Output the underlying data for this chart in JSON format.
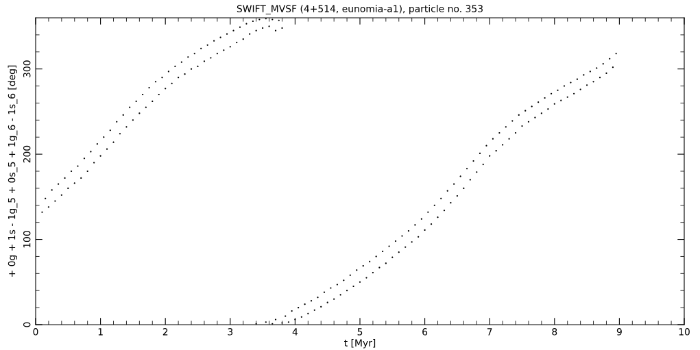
{
  "chart_data": {
    "type": "scatter",
    "title": "SWIFT_MVSF (4+514, eunomia-a1), particle no. 353",
    "xlabel": "t [Myr]",
    "ylabel": "+ 0g + 1s - 1g_5 + 0s_5 + 1g_6 - 1s_6 [deg]",
    "xlim": [
      0,
      10
    ],
    "ylim": [
      0,
      360
    ],
    "grid": false,
    "legend": false,
    "xticks": [
      0,
      {
        "value": 0.2,
        "label": null
      },
      {
        "value": 0.4,
        "label": null
      },
      {
        "value": 0.6,
        "label": null
      },
      {
        "value": 0.8,
        "label": null
      },
      1,
      {
        "value": 1.2,
        "label": null
      },
      {
        "value": 1.4,
        "label": null
      },
      {
        "value": 1.6,
        "label": null
      },
      {
        "value": 1.8,
        "label": null
      },
      2,
      {
        "value": 2.2,
        "label": null
      },
      {
        "value": 2.4,
        "label": null
      },
      {
        "value": 2.6,
        "label": null
      },
      {
        "value": 2.8,
        "label": null
      },
      3,
      {
        "value": 3.2,
        "label": null
      },
      {
        "value": 3.4,
        "label": null
      },
      {
        "value": 3.6,
        "label": null
      },
      {
        "value": 3.8,
        "label": null
      },
      4,
      {
        "value": 4.2,
        "label": null
      },
      {
        "value": 4.4,
        "label": null
      },
      {
        "value": 4.6,
        "label": null
      },
      {
        "value": 4.8,
        "label": null
      },
      5,
      {
        "value": 5.2,
        "label": null
      },
      {
        "value": 5.4,
        "label": null
      },
      {
        "value": 5.6,
        "label": null
      },
      {
        "value": 5.8,
        "label": null
      },
      6,
      {
        "value": 6.2,
        "label": null
      },
      {
        "value": 6.4,
        "label": null
      },
      {
        "value": 6.6,
        "label": null
      },
      {
        "value": 6.8,
        "label": null
      },
      7,
      {
        "value": 7.2,
        "label": null
      },
      {
        "value": 7.4,
        "label": null
      },
      {
        "value": 7.6,
        "label": null
      },
      {
        "value": 7.8,
        "label": null
      },
      8,
      {
        "value": 8.2,
        "label": null
      },
      {
        "value": 8.4,
        "label": null
      },
      {
        "value": 8.6,
        "label": null
      },
      {
        "value": 8.8,
        "label": null
      },
      9,
      {
        "value": 9.2,
        "label": null
      },
      {
        "value": 9.4,
        "label": null
      },
      {
        "value": 9.6,
        "label": null
      },
      {
        "value": 9.8,
        "label": null
      },
      10
    ],
    "yticks": [
      0,
      {
        "value": 20,
        "label": null
      },
      {
        "value": 40,
        "label": null
      },
      {
        "value": 60,
        "label": null
      },
      {
        "value": 80,
        "label": null
      },
      100,
      {
        "value": 120,
        "label": null
      },
      {
        "value": 140,
        "label": null
      },
      {
        "value": 160,
        "label": null
      },
      {
        "value": 180,
        "label": null
      },
      200,
      {
        "value": 220,
        "label": null
      },
      {
        "value": 240,
        "label": null
      },
      {
        "value": 260,
        "label": null
      },
      {
        "value": 280,
        "label": null
      },
      300,
      {
        "value": 320,
        "label": null
      },
      {
        "value": 340,
        "label": null
      }
    ],
    "series": [
      {
        "color": "#000000",
        "x": [
          0.1,
          0.15,
          0.2,
          0.25,
          0.3,
          0.35,
          0.4,
          0.45,
          0.5,
          0.55,
          0.6,
          0.65,
          0.7,
          0.75,
          0.8,
          0.85,
          0.9,
          0.95,
          1.0,
          1.05,
          1.1,
          1.15,
          1.2,
          1.25,
          1.3,
          1.35,
          1.4,
          1.45,
          1.5,
          1.55,
          1.6,
          1.65,
          1.7,
          1.75,
          1.8,
          1.85,
          1.9,
          1.95,
          2.0,
          2.05,
          2.1,
          2.15,
          2.2,
          2.25,
          2.3,
          2.35,
          2.4,
          2.45,
          2.5,
          2.55,
          2.6,
          2.65,
          2.7,
          2.75,
          2.8,
          2.85,
          2.9,
          2.95,
          3.0,
          3.05,
          3.1,
          3.15,
          3.2,
          3.25,
          3.3,
          3.35,
          3.4,
          3.45,
          3.5,
          3.55,
          3.6,
          3.65,
          3.7,
          3.75,
          3.8
        ],
        "values": [
          132,
          148,
          138,
          158,
          145,
          165,
          152,
          172,
          160,
          180,
          166,
          186,
          172,
          195,
          180,
          203,
          190,
          212,
          198,
          220,
          206,
          228,
          214,
          238,
          224,
          246,
          232,
          255,
          240,
          262,
          248,
          270,
          255,
          278,
          262,
          285,
          270,
          290,
          277,
          297,
          283,
          303,
          290,
          308,
          294,
          314,
          300,
          318,
          303,
          324,
          309,
          328,
          313,
          333,
          318,
          337,
          322,
          341,
          326,
          345,
          331,
          349,
          335,
          353,
          341,
          356,
          345,
          358,
          348,
          359,
          350,
          358,
          345,
          357,
          348
        ]
      },
      {
        "color": "#000000",
        "x": [
          3.4,
          3.55,
          3.65,
          3.7,
          3.8,
          3.85,
          3.9,
          3.95,
          4.0,
          4.05,
          4.1,
          4.15,
          4.2,
          4.25,
          4.3,
          4.35,
          4.4,
          4.45,
          4.5,
          4.55,
          4.6,
          4.65,
          4.7,
          4.75,
          4.8,
          4.85,
          4.9,
          4.95,
          5.0,
          5.05,
          5.1,
          5.15,
          5.2,
          5.25,
          5.3,
          5.35,
          5.4,
          5.45,
          5.5,
          5.55,
          5.6,
          5.65,
          5.7,
          5.75,
          5.8,
          5.85,
          5.9,
          5.95,
          6.0,
          6.05,
          6.1,
          6.15,
          6.2,
          6.25,
          6.3,
          6.35,
          6.4,
          6.45,
          6.5,
          6.55,
          6.6,
          6.65,
          6.7,
          6.75,
          6.8,
          6.85,
          6.9,
          6.95,
          7.0,
          7.05,
          7.1,
          7.15,
          7.2,
          7.25,
          7.3,
          7.35,
          7.4,
          7.45,
          7.5,
          7.55,
          7.6,
          7.65,
          7.7,
          7.75,
          7.8,
          7.85,
          7.9,
          7.95,
          8.0,
          8.05,
          8.1,
          8.15,
          8.2,
          8.25,
          8.3,
          8.35,
          8.4,
          8.45,
          8.5,
          8.55,
          8.6,
          8.65,
          8.7,
          8.75,
          8.8,
          8.85,
          8.9,
          8.95
        ],
        "values": [
          1,
          3,
          1,
          6,
          2,
          10,
          3,
          16,
          6,
          20,
          9,
          24,
          13,
          28,
          17,
          32,
          21,
          38,
          26,
          43,
          30,
          47,
          35,
          52,
          40,
          58,
          45,
          64,
          50,
          69,
          55,
          74,
          61,
          80,
          67,
          86,
          72,
          92,
          79,
          98,
          85,
          104,
          91,
          110,
          97,
          117,
          103,
          124,
          111,
          132,
          118,
          140,
          126,
          148,
          134,
          157,
          143,
          165,
          151,
          174,
          160,
          183,
          170,
          192,
          179,
          201,
          188,
          210,
          198,
          218,
          204,
          225,
          211,
          232,
          218,
          239,
          225,
          246,
          233,
          251,
          238,
          256,
          243,
          261,
          248,
          266,
          253,
          271,
          259,
          275,
          263,
          280,
          267,
          284,
          271,
          288,
          276,
          293,
          281,
          297,
          285,
          301,
          290,
          306,
          295,
          312,
          302,
          318
        ]
      }
    ]
  }
}
